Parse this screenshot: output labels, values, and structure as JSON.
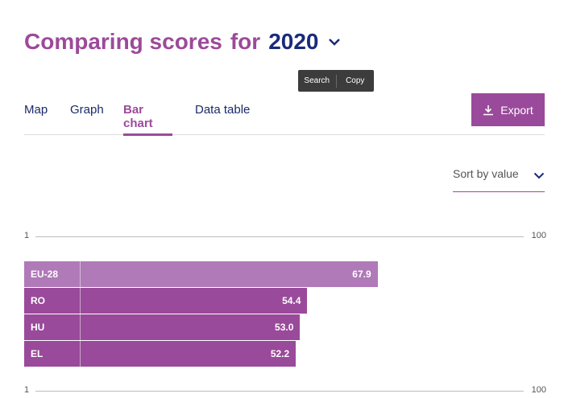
{
  "header": {
    "title_prefix": "Comparing scores",
    "title_for": "for",
    "year": "2020"
  },
  "popup": {
    "search_label": "Search",
    "copy_label": "Copy"
  },
  "tabs": [
    {
      "label": "Map",
      "active": false
    },
    {
      "label": "Graph",
      "active": false
    },
    {
      "label": "Bar chart",
      "active": true
    },
    {
      "label": "Data table",
      "active": false
    }
  ],
  "export": {
    "label": "Export"
  },
  "sort": {
    "label": "Sort by value"
  },
  "axis": {
    "min_label": "1",
    "max_label": "100"
  },
  "colors": {
    "accent": "#9c4a9a",
    "navy": "#1a2a7a",
    "eu_bar": "#b079b8",
    "country_bar": "#9a4a9a"
  },
  "chart_data": {
    "type": "bar",
    "orientation": "horizontal",
    "categories": [
      "EU-28",
      "RO",
      "HU",
      "EL"
    ],
    "values": [
      67.9,
      54.4,
      53.0,
      52.2
    ],
    "value_labels": [
      "67.9",
      "54.4",
      "53.0",
      "52.2"
    ],
    "xlim": [
      1,
      100
    ]
  }
}
